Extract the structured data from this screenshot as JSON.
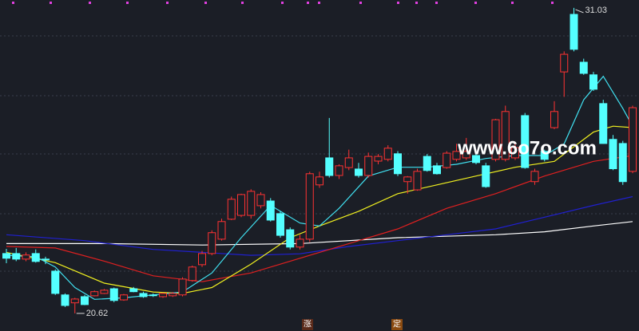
{
  "chart_data": {
    "type": "candlestick",
    "open": [
      22.66,
      22.66,
      22.47,
      22.66,
      22.47,
      22.06,
      21.25,
      20.98,
      21.19,
      21.22,
      21.3,
      21.46,
      21.08,
      21.46,
      21.3,
      21.25,
      21.19,
      21.22,
      21.25,
      21.74,
      22.28,
      22.66,
      23.15,
      23.83,
      23.96,
      23.96,
      24.29,
      24.45,
      24.02,
      23.47,
      22.88,
      23.15,
      25.0,
      25.92,
      25.32,
      25.59,
      25.54,
      25.32,
      25.81,
      25.87,
      26.06,
      25.11,
      24.83,
      25.97,
      25.65,
      25.59,
      25.87,
      25.92,
      26.0,
      25.65,
      25.87,
      25.87,
      25.92,
      27.36,
      25.11,
      26.14,
      26.95,
      28.85,
      30.81,
      29.18,
      28.75,
      27.77,
      26.55,
      26.41,
      25.46
    ],
    "high": [
      22.82,
      22.85,
      22.7,
      22.8,
      22.55,
      22.12,
      21.3,
      21.15,
      21.25,
      21.4,
      21.45,
      21.5,
      21.28,
      21.52,
      21.36,
      21.3,
      21.32,
      21.35,
      21.85,
      22.25,
      22.75,
      23.45,
      23.85,
      24.6,
      24.7,
      24.85,
      24.75,
      24.55,
      24.1,
      23.55,
      23.3,
      25.45,
      25.45,
      27.28,
      25.7,
      26.2,
      25.75,
      26.1,
      26.05,
      26.35,
      26.15,
      25.3,
      25.55,
      26.05,
      25.75,
      26.15,
      26.4,
      26.6,
      26.1,
      25.75,
      27.25,
      27.7,
      26.4,
      27.45,
      25.55,
      26.2,
      27.85,
      29.55,
      31.03,
      29.3,
      28.85,
      27.9,
      26.7,
      26.5,
      27.7
    ],
    "low": [
      22.33,
      22.4,
      22.4,
      22.35,
      22.3,
      21.25,
      20.84,
      20.62,
      20.9,
      21.2,
      21.28,
      21.0,
      21.05,
      21.34,
      21.15,
      21.18,
      21.15,
      21.18,
      21.2,
      21.7,
      22.2,
      22.6,
      23.1,
      23.8,
      23.9,
      23.85,
      24.2,
      23.75,
      23.2,
      22.8,
      22.8,
      23.05,
      24.9,
      25.25,
      25.2,
      25.5,
      25.25,
      25.25,
      25.7,
      25.8,
      25.3,
      24.7,
      24.8,
      25.45,
      25.35,
      25.55,
      25.8,
      25.85,
      25.7,
      24.9,
      25.8,
      25.8,
      25.85,
      25.55,
      25.0,
      25.8,
      26.9,
      28.0,
      29.55,
      28.75,
      28.2,
      26.4,
      25.5,
      25.0,
      25.4
    ],
    "close": [
      22.5,
      22.47,
      22.61,
      22.39,
      22.45,
      21.3,
      20.89,
      21.11,
      20.92,
      21.36,
      21.41,
      21.06,
      21.25,
      21.36,
      21.19,
      21.24,
      21.3,
      21.3,
      21.79,
      22.2,
      22.66,
      23.37,
      23.75,
      24.51,
      24.67,
      24.78,
      24.67,
      23.8,
      23.28,
      22.88,
      23.15,
      25.38,
      25.27,
      25.32,
      25.65,
      25.92,
      25.32,
      25.97,
      25.97,
      26.25,
      25.38,
      25.27,
      25.46,
      25.49,
      25.38,
      26.08,
      26.14,
      26.14,
      25.76,
      24.94,
      27.22,
      27.5,
      26.27,
      25.59,
      25.46,
      25.87,
      27.5,
      29.45,
      29.62,
      28.8,
      28.26,
      26.41,
      25.55,
      25.11,
      27.63
    ],
    "up_color": "#ff3232",
    "down_color": "#54ffff",
    "ylim": [
      20.02,
      31.3
    ],
    "moving_averages": [
      {
        "color": "#ffffff",
        "x": [
          0,
          10,
          20,
          30,
          40,
          50,
          55,
          60,
          64
        ],
        "values": [
          23.0,
          23.0,
          22.95,
          23.0,
          23.2,
          23.3,
          23.4,
          23.6,
          23.75
        ]
      },
      {
        "color": "#2020d0",
        "x": [
          0,
          8,
          15,
          20,
          25,
          30,
          35,
          40,
          45,
          50,
          55,
          60,
          64
        ],
        "values": [
          23.3,
          23.1,
          22.8,
          22.7,
          22.6,
          22.65,
          22.9,
          23.1,
          23.3,
          23.5,
          23.9,
          24.3,
          24.6
        ]
      },
      {
        "color": "#e02020",
        "x": [
          0,
          5,
          10,
          15,
          20,
          25,
          30,
          35,
          40,
          45,
          50,
          55,
          60,
          64
        ],
        "values": [
          22.9,
          22.85,
          22.4,
          21.9,
          21.7,
          22.0,
          22.5,
          23.0,
          23.5,
          24.2,
          24.7,
          25.3,
          25.8,
          26.0
        ]
      },
      {
        "color": "#f0f020",
        "x": [
          0,
          5,
          10,
          15,
          18,
          21,
          25,
          29,
          32,
          36,
          40,
          44,
          48,
          52,
          56,
          60,
          62,
          64
        ],
        "values": [
          22.7,
          22.35,
          21.65,
          21.35,
          21.3,
          21.5,
          22.3,
          23.2,
          23.6,
          24.1,
          24.7,
          25.0,
          25.3,
          25.6,
          25.8,
          26.8,
          27.0,
          26.95
        ]
      },
      {
        "color": "#40e0f0",
        "x": [
          0,
          3,
          5,
          7,
          9,
          12,
          15,
          18,
          21,
          24,
          27,
          30,
          32,
          34,
          37,
          40,
          43,
          46,
          49,
          52,
          55,
          57,
          59,
          61,
          63,
          64
        ],
        "values": [
          22.6,
          22.55,
          22.2,
          21.5,
          21.1,
          21.15,
          21.25,
          21.35,
          22.0,
          23.2,
          24.3,
          23.7,
          23.6,
          24.2,
          25.3,
          25.6,
          25.6,
          25.7,
          25.9,
          26.0,
          26.0,
          26.4,
          27.9,
          28.7,
          27.6,
          27.0
        ]
      }
    ],
    "high_label": "31.03",
    "low_label": "20.62",
    "watermark": "www.6o7o.com",
    "markers": [
      "涨",
      "定"
    ]
  }
}
